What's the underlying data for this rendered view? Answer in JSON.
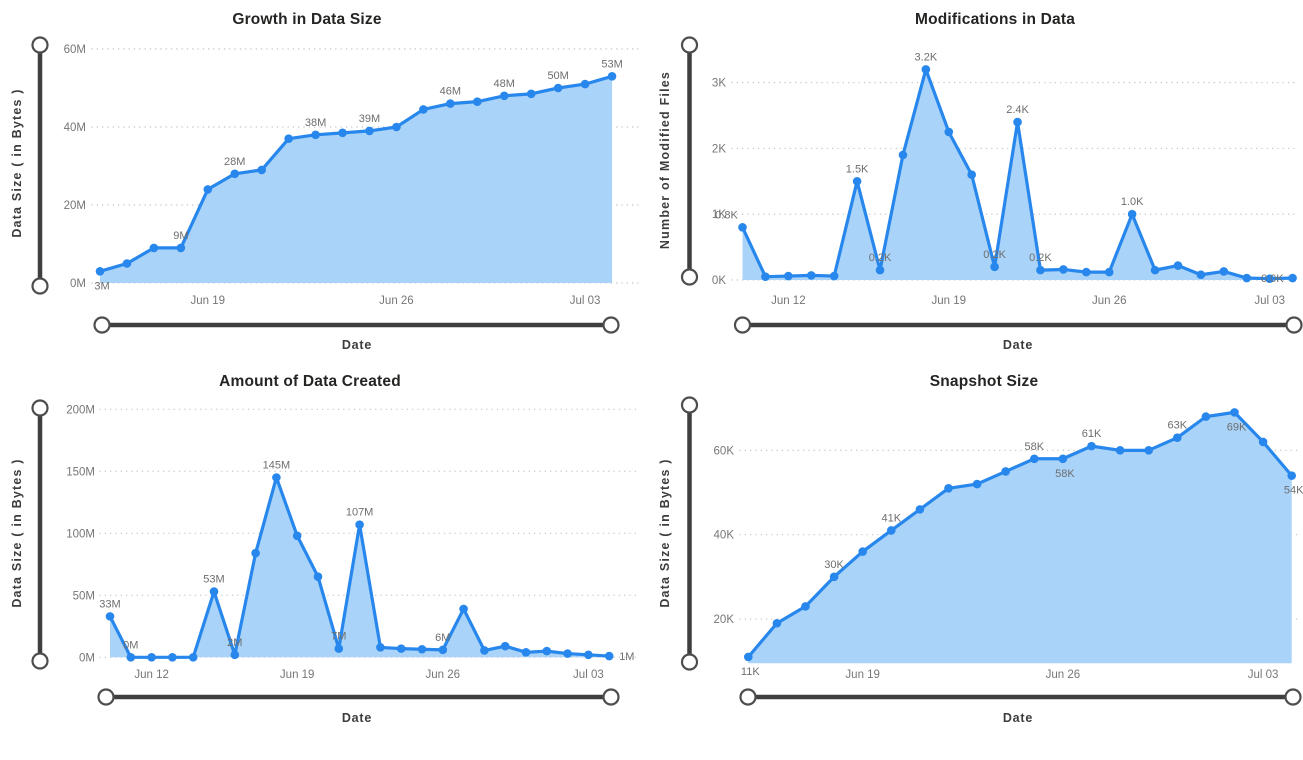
{
  "style": {
    "line_color": "#2787EC",
    "marker_color": "#2787EC",
    "fill_color": "#A9D3F8",
    "grid_color": "#C9C9C9",
    "tick_label_color": "#767676",
    "data_label_color": "#6E6E6E",
    "title_color": "#252423",
    "axis_title_color": "#3C3C3C",
    "slider_track_color": "#3F3F3F",
    "slider_handle_stroke": "#4D4D4D",
    "slider_handle_fill": "#FFFFFF",
    "background": "#FFFFFF"
  },
  "chart_data": [
    {
      "type": "area",
      "title": "Growth in Data Size",
      "x_axis_title": "Date",
      "y_axis_title": "Data Size ( in Bytes )",
      "legend": "none",
      "grid": "dotted-horizontal",
      "y_unit": "M",
      "y_min": 0,
      "y_ticks": [
        {
          "value": 0,
          "label": "0M"
        },
        {
          "value": 20,
          "label": "20M"
        },
        {
          "value": 40,
          "label": "40M"
        },
        {
          "value": 60,
          "label": "60M"
        }
      ],
      "x_ticks": [
        {
          "index": 4,
          "label": "Jun 19"
        },
        {
          "index": 11,
          "label": "Jun 26"
        },
        {
          "index": 18,
          "label": "Jul 03"
        }
      ],
      "values": [
        3,
        5,
        9,
        9,
        24,
        28,
        29,
        37,
        38,
        38.5,
        39,
        40,
        44.5,
        46,
        46.5,
        48,
        48.5,
        50,
        51,
        53
      ],
      "point_labels": [
        {
          "index": 0,
          "text": "3M",
          "pos": "below"
        },
        {
          "index": 3,
          "text": "9M",
          "pos": "above"
        },
        {
          "index": 5,
          "text": "28M",
          "pos": "above"
        },
        {
          "index": 8,
          "text": "38M",
          "pos": "above"
        },
        {
          "index": 10,
          "text": "39M",
          "pos": "above"
        },
        {
          "index": 13,
          "text": "46M",
          "pos": "above"
        },
        {
          "index": 15,
          "text": "48M",
          "pos": "above"
        },
        {
          "index": 17,
          "text": "50M",
          "pos": "above"
        },
        {
          "index": 19,
          "text": "53M",
          "pos": "above"
        }
      ]
    },
    {
      "type": "area",
      "title": "Modifications in Data",
      "x_axis_title": "Date",
      "y_axis_title": "Number of Modified Files",
      "legend": "none",
      "grid": "dotted-horizontal",
      "y_unit": "K",
      "y_min": 0,
      "y_ticks": [
        {
          "value": 0,
          "label": "0K"
        },
        {
          "value": 1,
          "label": "1K"
        },
        {
          "value": 2,
          "label": "2K"
        },
        {
          "value": 3,
          "label": "3K"
        }
      ],
      "x_ticks": [
        {
          "index": 2,
          "label": "Jun 12"
        },
        {
          "index": 9,
          "label": "Jun 19"
        },
        {
          "index": 16,
          "label": "Jun 26"
        },
        {
          "index": 23,
          "label": "Jul 03"
        }
      ],
      "values": [
        0.8,
        0.05,
        0.06,
        0.07,
        0.06,
        1.5,
        0.15,
        1.9,
        3.2,
        2.25,
        1.6,
        0.2,
        2.4,
        0.15,
        0.16,
        0.12,
        0.12,
        1.0,
        0.15,
        0.22,
        0.08,
        0.13,
        0.03,
        0.02,
        0.03
      ],
      "point_labels": [
        {
          "index": 0,
          "text": "0.8K",
          "pos": "above-left"
        },
        {
          "index": 5,
          "text": "1.5K",
          "pos": "above"
        },
        {
          "index": 6,
          "text": "0.2K",
          "pos": "above"
        },
        {
          "index": 8,
          "text": "3.2K",
          "pos": "above"
        },
        {
          "index": 11,
          "text": "0.2K",
          "pos": "above"
        },
        {
          "index": 12,
          "text": "2.4K",
          "pos": "above"
        },
        {
          "index": 13,
          "text": "0.2K",
          "pos": "above"
        },
        {
          "index": 17,
          "text": "1.0K",
          "pos": "above"
        },
        {
          "index": 24,
          "text": "0.0K",
          "pos": "left"
        }
      ]
    },
    {
      "type": "area",
      "title": "Amount of Data Created",
      "x_axis_title": "Date",
      "y_axis_title": "Data Size ( in Bytes )",
      "legend": "none",
      "grid": "dotted-horizontal",
      "y_unit": "M",
      "y_min": 0,
      "y_ticks": [
        {
          "value": 0,
          "label": "0M"
        },
        {
          "value": 50,
          "label": "50M"
        },
        {
          "value": 100,
          "label": "100M"
        },
        {
          "value": 150,
          "label": "150M"
        },
        {
          "value": 200,
          "label": "200M"
        }
      ],
      "x_ticks": [
        {
          "index": 2,
          "label": "Jun 12"
        },
        {
          "index": 9,
          "label": "Jun 19"
        },
        {
          "index": 16,
          "label": "Jun 26"
        },
        {
          "index": 23,
          "label": "Jul 03"
        }
      ],
      "values": [
        33,
        0,
        0,
        0,
        0,
        53,
        2,
        84,
        145,
        98,
        65,
        7,
        107,
        8,
        7,
        6.5,
        6,
        39,
        5.5,
        9,
        4,
        5,
        3,
        2,
        1
      ],
      "point_labels": [
        {
          "index": 0,
          "text": "33M",
          "pos": "above"
        },
        {
          "index": 1,
          "text": "0M",
          "pos": "above"
        },
        {
          "index": 5,
          "text": "53M",
          "pos": "above"
        },
        {
          "index": 6,
          "text": "2M",
          "pos": "above"
        },
        {
          "index": 8,
          "text": "145M",
          "pos": "above"
        },
        {
          "index": 11,
          "text": "7M",
          "pos": "above"
        },
        {
          "index": 12,
          "text": "107M",
          "pos": "above"
        },
        {
          "index": 16,
          "text": "6M",
          "pos": "above"
        },
        {
          "index": 24,
          "text": "1M",
          "pos": "right"
        }
      ]
    },
    {
      "type": "area",
      "title": "Snapshot Size",
      "x_axis_title": "Date",
      "y_axis_title": "Data Size ( in Bytes )",
      "legend": "none",
      "grid": "dotted-horizontal",
      "y_unit": "K",
      "y_min": 9.5,
      "y_ticks": [
        {
          "value": 20,
          "label": "20K"
        },
        {
          "value": 40,
          "label": "40K"
        },
        {
          "value": 60,
          "label": "60K"
        }
      ],
      "x_ticks": [
        {
          "index": 4,
          "label": "Jun 19"
        },
        {
          "index": 11,
          "label": "Jun 26"
        },
        {
          "index": 18,
          "label": "Jul 03"
        }
      ],
      "values": [
        11,
        19,
        23,
        30,
        36,
        41,
        46,
        51,
        52,
        55,
        58,
        58,
        61,
        60,
        60,
        63,
        68,
        69,
        62,
        54
      ],
      "point_labels": [
        {
          "index": 0,
          "text": "11K",
          "pos": "below"
        },
        {
          "index": 3,
          "text": "30K",
          "pos": "above"
        },
        {
          "index": 5,
          "text": "41K",
          "pos": "above"
        },
        {
          "index": 10,
          "text": "58K",
          "pos": "above"
        },
        {
          "index": 11,
          "text": "58K",
          "pos": "below"
        },
        {
          "index": 12,
          "text": "61K",
          "pos": "above"
        },
        {
          "index": 15,
          "text": "63K",
          "pos": "above"
        },
        {
          "index": 17,
          "text": "69K",
          "pos": "below"
        },
        {
          "index": 19,
          "text": "54K",
          "pos": "below"
        }
      ]
    }
  ]
}
